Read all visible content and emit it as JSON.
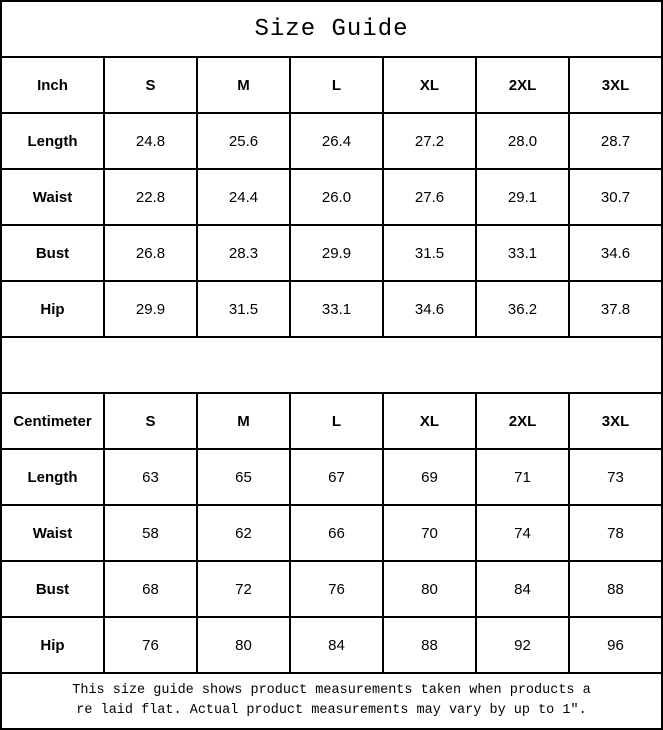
{
  "title": "Size Guide",
  "colors": {
    "border": "#000000",
    "background": "#ffffff",
    "text": "#000000"
  },
  "footer": {
    "line1": "This size guide shows product measurements taken when products a",
    "line2": "re laid flat. Actual product measurements may vary by up to 1″."
  },
  "chart_data": [
    {
      "type": "table",
      "name": "inch-size-table",
      "header": [
        "Inch",
        "S",
        "M",
        "L",
        "XL",
        "2XL",
        "3XL"
      ],
      "rows": [
        [
          "Length",
          "24.8",
          "25.6",
          "26.4",
          "27.2",
          "28.0",
          "28.7"
        ],
        [
          "Waist",
          "22.8",
          "24.4",
          "26.0",
          "27.6",
          "29.1",
          "30.7"
        ],
        [
          "Bust",
          "26.8",
          "28.3",
          "29.9",
          "31.5",
          "33.1",
          "34.6"
        ],
        [
          "Hip",
          "29.9",
          "31.5",
          "33.1",
          "34.6",
          "36.2",
          "37.8"
        ]
      ]
    },
    {
      "type": "table",
      "name": "centimeter-size-table",
      "header": [
        "Centimeter",
        "S",
        "M",
        "L",
        "XL",
        "2XL",
        "3XL"
      ],
      "rows": [
        [
          "Length",
          "63",
          "65",
          "67",
          "69",
          "71",
          "73"
        ],
        [
          "Waist",
          "58",
          "62",
          "66",
          "70",
          "74",
          "78"
        ],
        [
          "Bust",
          "68",
          "72",
          "76",
          "80",
          "84",
          "88"
        ],
        [
          "Hip",
          "76",
          "80",
          "84",
          "88",
          "92",
          "96"
        ]
      ]
    }
  ]
}
